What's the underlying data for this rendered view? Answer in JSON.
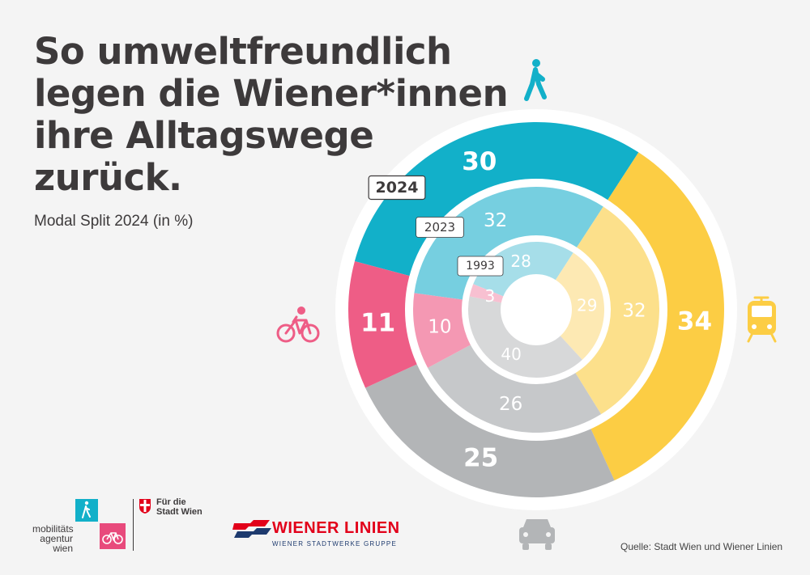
{
  "title_lines": [
    "So umweltfreundlich",
    "legen die Wiener*innen",
    "ihre Alltagswege",
    "zurück."
  ],
  "subtitle": "Modal Split 2024 (in %)",
  "source": "Quelle: Stadt Wien und Wiener Linien",
  "logos": {
    "mobilitaetsagentur": [
      "mobilitäts",
      "agentur",
      "wien"
    ],
    "stadt_wien": [
      "Für die",
      "Stadt Wien"
    ],
    "wiener_linien": "WIENER LINIEN",
    "wiener_linien_sub": "WIENER STADTWERKE GRUPPE"
  },
  "colors": {
    "walk": "#12b0c9",
    "walk_light": "#76cfe0",
    "walk_lighter": "#a6dee9",
    "oepnv": "#fccd44",
    "oepnv_light": "#fce08b",
    "oepnv_lighter": "#fde9b3",
    "car": "#b3b5b7",
    "car_light": "#c6c8ca",
    "car_lighter": "#d7d8d9",
    "bike": "#ee5d86",
    "bike_light": "#f498b3",
    "bike_lighter": "#f8c0d1"
  },
  "chart_data": {
    "type": "donut",
    "title": "So umweltfreundlich legen die Wiener*innen ihre Alltagswege zurück.",
    "subtitle": "Modal Split 2024 (in %)",
    "categories": [
      "Zu Fuß",
      "Öffis",
      "Auto",
      "Fahrrad"
    ],
    "category_icons": [
      "walk-icon",
      "tram-icon",
      "car-icon",
      "bike-icon"
    ],
    "series": [
      {
        "name": "2024",
        "values": [
          30,
          34,
          25,
          11
        ]
      },
      {
        "name": "2023",
        "values": [
          32,
          32,
          26,
          10
        ]
      },
      {
        "name": "1993",
        "values": [
          28,
          29,
          40,
          3
        ]
      }
    ],
    "unit": "%"
  }
}
